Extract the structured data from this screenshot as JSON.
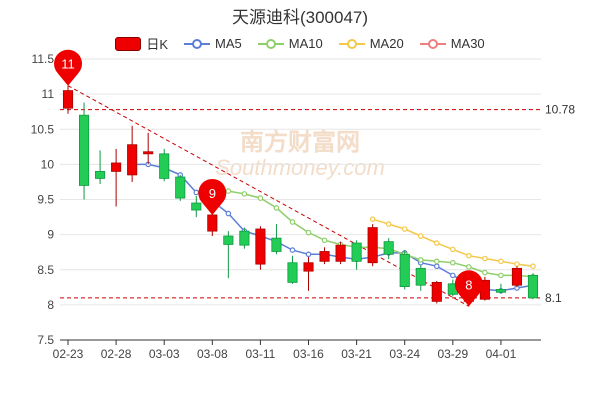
{
  "title": "天源迪科(300047)",
  "legend": [
    {
      "label": "日K",
      "kind": "candle",
      "color": "#ee0000"
    },
    {
      "label": "MA5",
      "kind": "line",
      "color": "#5b7fd6"
    },
    {
      "label": "MA10",
      "kind": "line",
      "color": "#8fcf6b"
    },
    {
      "label": "MA20",
      "kind": "line",
      "color": "#f5c84a"
    },
    {
      "label": "MA30",
      "kind": "line",
      "color": "#ef7f7f"
    }
  ],
  "colors": {
    "up": "#ee0000",
    "down": "#22cc55",
    "trend_line": "#cc0000",
    "pin": "#ee0000",
    "watermark": "#f3dcc8"
  },
  "watermark": {
    "cn": "南方财富网",
    "en": "Southmoney.com"
  },
  "chart_data": {
    "type": "candlestick",
    "ylim": [
      7.5,
      11.5
    ],
    "yticks": [
      7.5,
      8,
      8.5,
      9,
      9.5,
      10,
      10.5,
      11,
      11.5
    ],
    "ytick_labels": [
      "7.5",
      "8",
      "8.5",
      "9",
      "9.5",
      "10",
      "10.5",
      "11",
      "11.5"
    ],
    "xticks": [
      {
        "index": 0,
        "label": "02-23"
      },
      {
        "index": 3,
        "label": "02-28"
      },
      {
        "index": 6,
        "label": "03-03"
      },
      {
        "index": 9,
        "label": "03-08"
      },
      {
        "index": 12,
        "label": "03-11"
      },
      {
        "index": 15,
        "label": "03-16"
      },
      {
        "index": 18,
        "label": "03-21"
      },
      {
        "index": 21,
        "label": "03-24"
      },
      {
        "index": 24,
        "label": "03-29"
      },
      {
        "index": 27,
        "label": "04-01"
      }
    ],
    "candles": [
      {
        "open": 10.8,
        "close": 11.05,
        "high": 11.12,
        "low": 10.72
      },
      {
        "open": 10.7,
        "close": 9.7,
        "high": 10.88,
        "low": 9.5
      },
      {
        "open": 9.9,
        "close": 9.8,
        "high": 10.2,
        "low": 9.72
      },
      {
        "open": 9.9,
        "close": 10.02,
        "high": 10.22,
        "low": 9.4
      },
      {
        "open": 9.85,
        "close": 10.28,
        "high": 10.55,
        "low": 9.75
      },
      {
        "open": 10.15,
        "close": 10.18,
        "high": 10.45,
        "low": 10.0
      },
      {
        "open": 10.15,
        "close": 9.8,
        "high": 10.22,
        "low": 9.76
      },
      {
        "open": 9.82,
        "close": 9.52,
        "high": 9.85,
        "low": 9.48
      },
      {
        "open": 9.45,
        "close": 9.35,
        "high": 9.55,
        "low": 9.25
      },
      {
        "open": 9.05,
        "close": 9.28,
        "high": 9.35,
        "low": 8.98
      },
      {
        "open": 8.98,
        "close": 8.86,
        "high": 9.05,
        "low": 8.38
      },
      {
        "open": 9.05,
        "close": 8.85,
        "high": 9.1,
        "low": 8.8
      },
      {
        "open": 8.58,
        "close": 9.08,
        "high": 9.12,
        "low": 8.5
      },
      {
        "open": 8.95,
        "close": 8.76,
        "high": 9.15,
        "low": 8.72
      },
      {
        "open": 8.6,
        "close": 8.32,
        "high": 8.7,
        "low": 8.3
      },
      {
        "open": 8.48,
        "close": 8.6,
        "high": 8.68,
        "low": 8.2
      },
      {
        "open": 8.62,
        "close": 8.76,
        "high": 8.82,
        "low": 8.58
      },
      {
        "open": 8.62,
        "close": 8.85,
        "high": 8.9,
        "low": 8.58
      },
      {
        "open": 8.88,
        "close": 8.62,
        "high": 8.92,
        "low": 8.5
      },
      {
        "open": 8.6,
        "close": 9.1,
        "high": 9.15,
        "low": 8.55
      },
      {
        "open": 8.9,
        "close": 8.72,
        "high": 8.95,
        "low": 8.65
      },
      {
        "open": 8.72,
        "close": 8.26,
        "high": 8.78,
        "low": 8.22
      },
      {
        "open": 8.52,
        "close": 8.28,
        "high": 8.56,
        "low": 8.2
      },
      {
        "open": 8.05,
        "close": 8.32,
        "high": 8.34,
        "low": 8.02
      },
      {
        "open": 8.3,
        "close": 8.15,
        "high": 8.36,
        "low": 8.12
      },
      {
        "open": 8.05,
        "close": 8.22,
        "high": 8.25,
        "low": 7.98
      },
      {
        "open": 8.08,
        "close": 8.35,
        "high": 8.4,
        "low": 8.06
      },
      {
        "open": 8.22,
        "close": 8.18,
        "high": 8.3,
        "low": 8.16
      },
      {
        "open": 8.28,
        "close": 8.52,
        "high": 8.55,
        "low": 8.25
      },
      {
        "open": 8.42,
        "close": 8.1,
        "high": 8.45,
        "low": 8.08
      }
    ],
    "series": [
      {
        "name": "MA5",
        "values": [
          null,
          null,
          null,
          null,
          10.0,
          10.0,
          9.95,
          9.85,
          9.6,
          9.48,
          9.3,
          9.05,
          8.98,
          8.9,
          8.78,
          8.72,
          8.72,
          8.68,
          8.65,
          8.68,
          8.74,
          8.74,
          8.6,
          8.55,
          8.42,
          8.3,
          8.22,
          8.2,
          8.24,
          8.28
        ]
      },
      {
        "name": "MA10",
        "values": [
          null,
          null,
          null,
          null,
          null,
          null,
          null,
          null,
          null,
          9.65,
          9.62,
          9.58,
          9.52,
          9.38,
          9.18,
          9.03,
          8.92,
          8.86,
          8.82,
          8.82,
          8.8,
          8.72,
          8.64,
          8.62,
          8.6,
          8.54,
          8.46,
          8.42,
          8.42,
          8.4
        ]
      },
      {
        "name": "MA20",
        "values": [
          null,
          null,
          null,
          null,
          null,
          null,
          null,
          null,
          null,
          null,
          null,
          null,
          null,
          null,
          null,
          null,
          null,
          null,
          null,
          9.22,
          9.15,
          9.08,
          8.98,
          8.88,
          8.79,
          8.7,
          8.66,
          8.62,
          8.58,
          8.55
        ]
      },
      {
        "name": "MA30",
        "values": []
      }
    ],
    "reference_lines": [
      {
        "value": 10.78,
        "label": "10.78"
      },
      {
        "value": 8.1,
        "label": "8.1"
      }
    ],
    "markers": [
      {
        "index": 0,
        "value": 11.12,
        "label": "11"
      },
      {
        "index": 9,
        "value": 9.28,
        "label": "9"
      },
      {
        "index": 25,
        "value": 7.98,
        "label": "8"
      }
    ],
    "trend_line": {
      "from": {
        "index": 0,
        "value": 11.12
      },
      "to": {
        "index": 25,
        "value": 7.98
      }
    }
  }
}
